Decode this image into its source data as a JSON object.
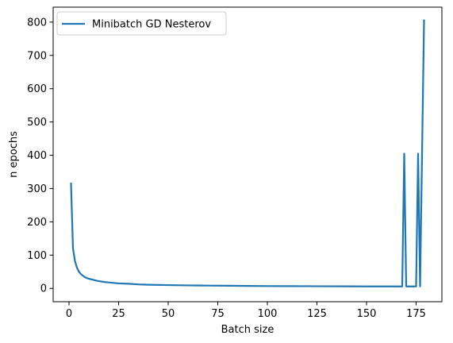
{
  "chart_data": {
    "type": "line",
    "title": "",
    "xlabel": "Batch size",
    "ylabel": "n epochs",
    "xlim": [
      -8,
      188
    ],
    "ylim": [
      -40,
      845
    ],
    "xticks": [
      0,
      25,
      50,
      75,
      100,
      125,
      150,
      175
    ],
    "yticks": [
      0,
      100,
      200,
      300,
      400,
      500,
      600,
      700,
      800
    ],
    "xtick_labels": [
      "0",
      "25",
      "50",
      "75",
      "100",
      "125",
      "150",
      "175"
    ],
    "ytick_labels": [
      "0",
      "100",
      "200",
      "300",
      "400",
      "500",
      "600",
      "700",
      "800"
    ],
    "grid": false,
    "legend_position": "upper-left",
    "colors": {
      "series": "#1f77b4",
      "axes": "#000000",
      "legend_border": "#cccccc"
    },
    "series": [
      {
        "name": "Minibatch GD Nesterov",
        "x": [
          1,
          2,
          3,
          4,
          5,
          6,
          7,
          8,
          9,
          10,
          12,
          14,
          16,
          18,
          20,
          25,
          30,
          35,
          40,
          50,
          60,
          70,
          80,
          90,
          100,
          110,
          120,
          130,
          140,
          150,
          160,
          168,
          169,
          170,
          171,
          172,
          173,
          174,
          175,
          176,
          177,
          178,
          179
        ],
        "y": [
          315,
          120,
          82,
          62,
          50,
          43,
          38,
          34,
          31,
          29,
          26,
          23,
          21,
          19,
          18,
          15,
          14,
          12,
          11,
          10,
          9,
          8.5,
          8,
          7.5,
          7,
          6.8,
          6.6,
          6.4,
          6.2,
          6,
          6,
          6,
          405,
          6,
          6,
          6,
          6,
          6,
          6,
          405,
          6,
          405,
          805
        ]
      }
    ]
  }
}
